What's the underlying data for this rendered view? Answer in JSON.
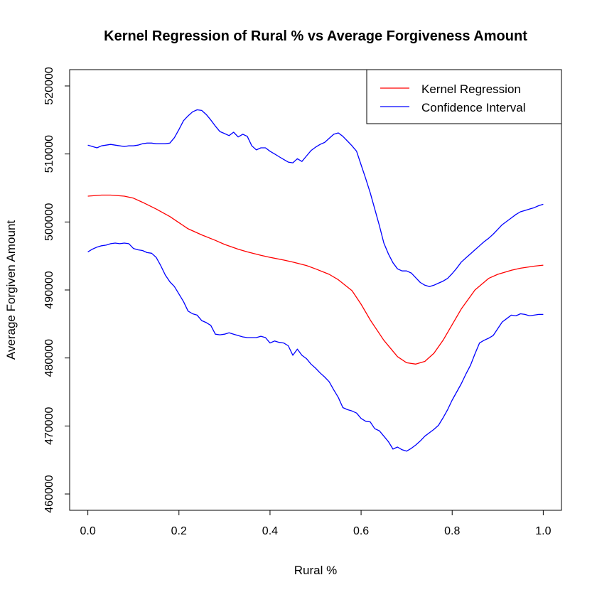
{
  "chart_data": {
    "type": "line",
    "title": "Kernel Regression of Rural % vs Average Forgiveness Amount",
    "xlabel": "Rural %",
    "ylabel": "Average Forgiven Amount",
    "xlim": [
      -0.04,
      1.04
    ],
    "ylim": [
      457600,
      522400
    ],
    "x_ticks": [
      "0.0",
      "0.2",
      "0.4",
      "0.6",
      "0.8",
      "1.0"
    ],
    "x_tick_values": [
      0,
      0.2,
      0.4,
      0.6,
      0.8,
      1.0
    ],
    "y_ticks": [
      "460000",
      "470000",
      "480000",
      "490000",
      "500000",
      "510000",
      "520000"
    ],
    "y_tick_values": [
      460000,
      470000,
      480000,
      490000,
      500000,
      510000,
      520000
    ],
    "grid": false,
    "legend_position": "top-right",
    "legend": [
      {
        "label": "Kernel Regression",
        "color": "#ff0000"
      },
      {
        "label": "Confidence Interval",
        "color": "#0000ff"
      }
    ],
    "series": [
      {
        "name": "Kernel Regression",
        "color": "#ff0000",
        "x": [
          0.0,
          0.03,
          0.05,
          0.08,
          0.1,
          0.12,
          0.15,
          0.18,
          0.2,
          0.22,
          0.25,
          0.28,
          0.3,
          0.33,
          0.35,
          0.38,
          0.4,
          0.43,
          0.45,
          0.48,
          0.5,
          0.53,
          0.55,
          0.58,
          0.6,
          0.62,
          0.65,
          0.68,
          0.7,
          0.72,
          0.74,
          0.76,
          0.78,
          0.8,
          0.82,
          0.85,
          0.88,
          0.9,
          0.93,
          0.95,
          0.98,
          1.0
        ],
        "y": [
          503800,
          503950,
          503950,
          503800,
          503500,
          502900,
          501900,
          500800,
          499900,
          499000,
          498100,
          497300,
          496700,
          496000,
          495600,
          495100,
          494800,
          494400,
          494100,
          493600,
          493100,
          492300,
          491500,
          489900,
          487900,
          485600,
          482600,
          480200,
          479300,
          479100,
          479500,
          480700,
          482600,
          484900,
          487200,
          490000,
          491700,
          492300,
          492900,
          493200,
          493500,
          493650
        ]
      },
      {
        "name": "Confidence Interval",
        "color": "#0000ff",
        "x": [
          0.0,
          0.01,
          0.02,
          0.03,
          0.04,
          0.05,
          0.06,
          0.07,
          0.08,
          0.09,
          0.1,
          0.11,
          0.12,
          0.13,
          0.14,
          0.15,
          0.16,
          0.17,
          0.18,
          0.19,
          0.2,
          0.21,
          0.22,
          0.23,
          0.24,
          0.25,
          0.26,
          0.27,
          0.28,
          0.29,
          0.3,
          0.31,
          0.32,
          0.33,
          0.34,
          0.35,
          0.36,
          0.37,
          0.38,
          0.39,
          0.4,
          0.41,
          0.42,
          0.43,
          0.44,
          0.45,
          0.46,
          0.47,
          0.48,
          0.49,
          0.5,
          0.51,
          0.52,
          0.53,
          0.54,
          0.55,
          0.56,
          0.57,
          0.58,
          0.59,
          0.6,
          0.61,
          0.62,
          0.63,
          0.64,
          0.65,
          0.66,
          0.67,
          0.68,
          0.69,
          0.7,
          0.71,
          0.72,
          0.73,
          0.74,
          0.75,
          0.76,
          0.77,
          0.78,
          0.79,
          0.8,
          0.81,
          0.82,
          0.83,
          0.84,
          0.85,
          0.86,
          0.87,
          0.88,
          0.89,
          0.9,
          0.91,
          0.92,
          0.93,
          0.94,
          0.95,
          0.96,
          0.97,
          0.98,
          0.99,
          1.0
        ],
        "y": [
          511300,
          511100,
          510900,
          511200,
          511300,
          511400,
          511300,
          511200,
          511100,
          511200,
          511200,
          511300,
          511500,
          511600,
          511600,
          511500,
          511500,
          511500,
          511600,
          512400,
          513600,
          514900,
          515600,
          516200,
          516500,
          516400,
          515800,
          515000,
          514100,
          513300,
          513000,
          512700,
          513200,
          512500,
          512900,
          512600,
          511200,
          510600,
          510900,
          510900,
          510400,
          510000,
          509600,
          509200,
          508800,
          508700,
          509300,
          508900,
          509700,
          510500,
          511000,
          511400,
          511700,
          512300,
          512900,
          513100,
          512600,
          511900,
          511200,
          510400,
          508400,
          506400,
          504300,
          501900,
          499500,
          496900,
          495300,
          494000,
          493100,
          492800,
          492800,
          492500,
          491800,
          491100,
          490700,
          490500,
          490700,
          491000,
          491300,
          491700,
          492400,
          493200,
          494100,
          494700,
          495300,
          495900,
          496500,
          497100,
          497600,
          498200,
          498900,
          499600,
          500100,
          500600,
          501100,
          501500,
          501700,
          501900,
          502100,
          502400,
          502600
        ]
      },
      {
        "name": "Confidence Interval",
        "color": "#0000ff",
        "x": [
          0.0,
          0.01,
          0.02,
          0.03,
          0.04,
          0.05,
          0.06,
          0.07,
          0.08,
          0.09,
          0.1,
          0.11,
          0.12,
          0.13,
          0.14,
          0.15,
          0.16,
          0.17,
          0.18,
          0.19,
          0.2,
          0.21,
          0.22,
          0.23,
          0.24,
          0.25,
          0.26,
          0.27,
          0.28,
          0.29,
          0.3,
          0.31,
          0.32,
          0.33,
          0.34,
          0.35,
          0.36,
          0.37,
          0.38,
          0.39,
          0.4,
          0.41,
          0.42,
          0.43,
          0.44,
          0.45,
          0.46,
          0.47,
          0.48,
          0.49,
          0.5,
          0.51,
          0.52,
          0.53,
          0.54,
          0.55,
          0.56,
          0.57,
          0.58,
          0.59,
          0.6,
          0.61,
          0.62,
          0.63,
          0.64,
          0.65,
          0.66,
          0.67,
          0.68,
          0.69,
          0.7,
          0.71,
          0.72,
          0.73,
          0.74,
          0.75,
          0.76,
          0.77,
          0.78,
          0.79,
          0.8,
          0.81,
          0.82,
          0.83,
          0.84,
          0.85,
          0.86,
          0.87,
          0.88,
          0.89,
          0.9,
          0.91,
          0.92,
          0.93,
          0.94,
          0.95,
          0.96,
          0.97,
          0.98,
          0.99,
          1.0
        ],
        "y": [
          495600,
          496000,
          496300,
          496500,
          496600,
          496800,
          496900,
          496800,
          496900,
          496800,
          496100,
          495900,
          495800,
          495500,
          495400,
          494800,
          493600,
          492200,
          491200,
          490500,
          489400,
          488300,
          486900,
          486500,
          486300,
          485500,
          485200,
          484800,
          483500,
          483400,
          483500,
          483700,
          483500,
          483300,
          483100,
          483000,
          483000,
          483000,
          483200,
          483000,
          482200,
          482500,
          482300,
          482200,
          481800,
          480400,
          481300,
          480400,
          479900,
          479100,
          478500,
          477800,
          477200,
          476500,
          475300,
          474200,
          472700,
          472400,
          472200,
          471900,
          471100,
          470700,
          470600,
          469600,
          469300,
          468500,
          467700,
          466600,
          466900,
          466500,
          466300,
          466700,
          467200,
          467800,
          468500,
          469000,
          469500,
          470100,
          471200,
          472400,
          473800,
          475000,
          476200,
          477600,
          478900,
          480600,
          482200,
          482600,
          482900,
          483300,
          484300,
          485300,
          485800,
          486300,
          486200,
          486500,
          486400,
          486200,
          486300,
          486400,
          486400
        ]
      }
    ]
  }
}
